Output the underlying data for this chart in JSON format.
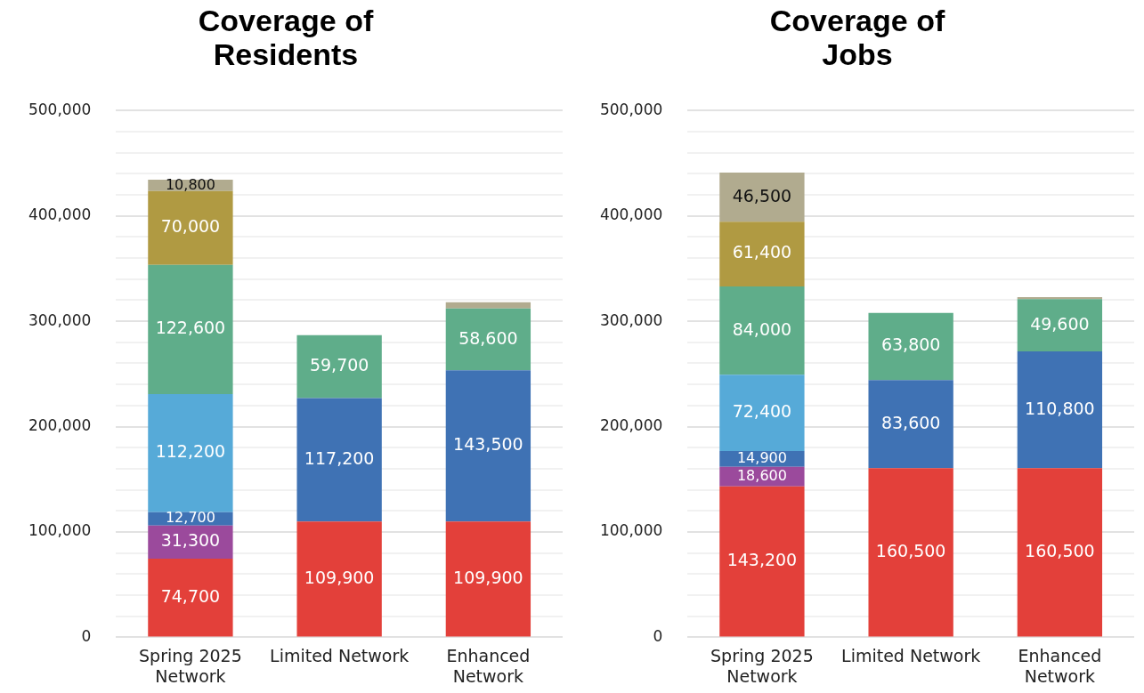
{
  "chart_data": [
    {
      "type": "bar",
      "title": "Coverage of Residents",
      "stacked": true,
      "grid": "y",
      "legend": false,
      "categories": [
        "Spring 2025 Network",
        "Limited Network",
        "Enhanced Network"
      ],
      "ylim": [
        0,
        500000
      ],
      "yticks": [
        0,
        {
          "value": 20000,
          "label": null
        },
        {
          "value": 40000,
          "label": null
        },
        {
          "value": 60000,
          "label": null
        },
        {
          "value": 80000,
          "label": null
        },
        {
          "value": 100000,
          "label": "100,000"
        },
        {
          "value": 120000,
          "label": null
        },
        {
          "value": 140000,
          "label": null
        },
        {
          "value": 160000,
          "label": null
        },
        {
          "value": 180000,
          "label": null
        },
        {
          "value": 200000,
          "label": "200,000"
        },
        {
          "value": 220000,
          "label": null
        },
        {
          "value": 240000,
          "label": null
        },
        {
          "value": 260000,
          "label": null
        },
        {
          "value": 280000,
          "label": null
        },
        {
          "value": 300000,
          "label": "300,000"
        },
        {
          "value": 320000,
          "label": null
        },
        {
          "value": 340000,
          "label": null
        },
        {
          "value": 360000,
          "label": null
        },
        {
          "value": 380000,
          "label": null
        },
        {
          "value": 400000,
          "label": "400,000"
        },
        {
          "value": 420000,
          "label": null
        },
        {
          "value": 440000,
          "label": null
        },
        {
          "value": 460000,
          "label": null
        },
        {
          "value": 480000,
          "label": null
        },
        {
          "value": 500000,
          "label": "500,000"
        }
      ],
      "series": [
        {
          "color": "#e3403a",
          "values": [
            74700,
            109900,
            109900
          ],
          "value_labels": [
            "74,700",
            "109,900",
            "109,900"
          ]
        },
        {
          "color": "#9b4a9c",
          "values": [
            31300,
            null,
            null
          ],
          "value_labels": [
            "31,300",
            null,
            null
          ]
        },
        {
          "color": "#3f72b4",
          "values": [
            12700,
            117200,
            143500
          ],
          "value_labels": [
            "12,700",
            "117,200",
            "143,500"
          ]
        },
        {
          "color": "#56aad8",
          "values": [
            112200,
            null,
            null
          ],
          "value_labels": [
            "112,200",
            null,
            null
          ]
        },
        {
          "color": "#5fad8a",
          "values": [
            122600,
            59700,
            58600
          ],
          "value_labels": [
            "122,600",
            "59,700",
            "58,600"
          ]
        },
        {
          "color": "#b09a42",
          "values": [
            70000,
            null,
            null
          ],
          "value_labels": [
            "70,000",
            null,
            null
          ]
        },
        {
          "color": "#b1ab8f",
          "values": [
            10800,
            null,
            6000
          ],
          "value_labels": [
            "10,800",
            null,
            null
          ]
        }
      ]
    },
    {
      "type": "bar",
      "title": "Coverage of Jobs",
      "stacked": true,
      "grid": "y",
      "legend": false,
      "categories": [
        "Spring 2025 Network",
        "Limited Network",
        "Enhanced Network"
      ],
      "ylim": [
        0,
        500000
      ],
      "yticks": [
        0,
        {
          "value": 20000,
          "label": null
        },
        {
          "value": 40000,
          "label": null
        },
        {
          "value": 60000,
          "label": null
        },
        {
          "value": 80000,
          "label": null
        },
        {
          "value": 100000,
          "label": "100,000"
        },
        {
          "value": 120000,
          "label": null
        },
        {
          "value": 140000,
          "label": null
        },
        {
          "value": 160000,
          "label": null
        },
        {
          "value": 180000,
          "label": null
        },
        {
          "value": 200000,
          "label": "200,000"
        },
        {
          "value": 220000,
          "label": null
        },
        {
          "value": 240000,
          "label": null
        },
        {
          "value": 260000,
          "label": null
        },
        {
          "value": 280000,
          "label": null
        },
        {
          "value": 300000,
          "label": "300,000"
        },
        {
          "value": 320000,
          "label": null
        },
        {
          "value": 340000,
          "label": null
        },
        {
          "value": 360000,
          "label": null
        },
        {
          "value": 380000,
          "label": null
        },
        {
          "value": 400000,
          "label": "400,000"
        },
        {
          "value": 420000,
          "label": null
        },
        {
          "value": 440000,
          "label": null
        },
        {
          "value": 460000,
          "label": null
        },
        {
          "value": 480000,
          "label": null
        },
        {
          "value": 500000,
          "label": "500,000"
        }
      ],
      "series": [
        {
          "color": "#e3403a",
          "values": [
            143200,
            160500,
            160500
          ],
          "value_labels": [
            "143,200",
            "160,500",
            "160,500"
          ]
        },
        {
          "color": "#9b4a9c",
          "values": [
            18600,
            null,
            null
          ],
          "value_labels": [
            "18,600",
            null,
            null
          ]
        },
        {
          "color": "#3f72b4",
          "values": [
            14900,
            83600,
            110800
          ],
          "value_labels": [
            "14,900",
            "83,600",
            "110,800"
          ]
        },
        {
          "color": "#56aad8",
          "values": [
            72400,
            null,
            null
          ],
          "value_labels": [
            "72,400",
            null,
            null
          ]
        },
        {
          "color": "#5fad8a",
          "values": [
            84000,
            63800,
            49600
          ],
          "value_labels": [
            "84,000",
            "63,800",
            "49,600"
          ]
        },
        {
          "color": "#b09a42",
          "values": [
            61400,
            null,
            null
          ],
          "value_labels": [
            "61,400",
            null,
            null
          ]
        },
        {
          "color": "#b1ab8f",
          "values": [
            46500,
            null,
            2000
          ],
          "value_labels": [
            "46,500",
            null,
            null
          ]
        }
      ]
    }
  ]
}
